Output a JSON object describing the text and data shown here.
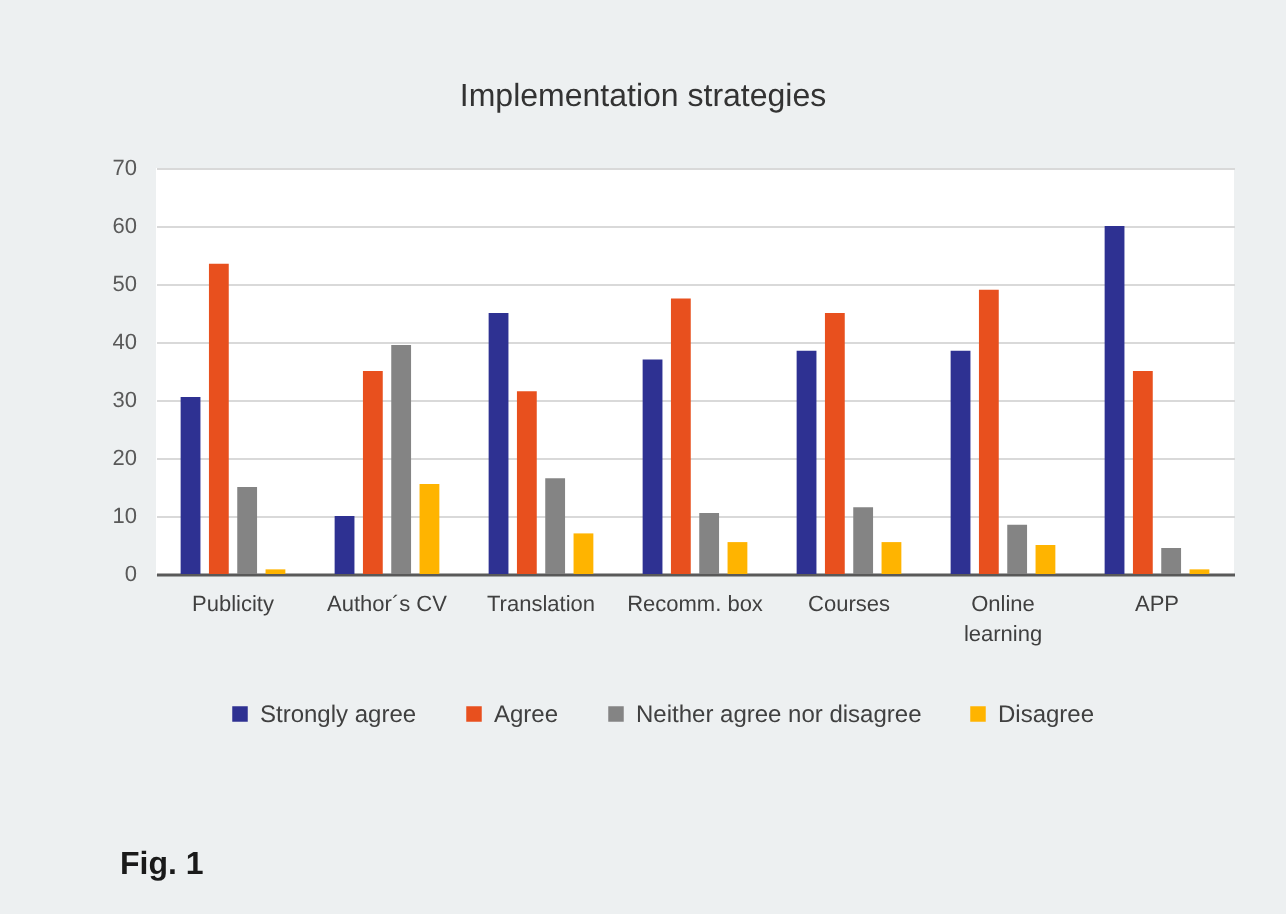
{
  "chart_data": {
    "type": "bar",
    "title": "Implementation strategies",
    "categories": [
      "Publicity",
      "Author´s CV",
      "Translation",
      "Recomm. box",
      "Courses",
      "Online learning",
      "APP"
    ],
    "series": [
      {
        "name": "Strongly agree",
        "color": "#2e3192",
        "values": [
          30.5,
          10,
          45,
          37,
          38.5,
          38.5,
          60
        ]
      },
      {
        "name": "Agree",
        "color": "#e8501e",
        "values": [
          53.5,
          35,
          31.5,
          47.5,
          45,
          49,
          35
        ]
      },
      {
        "name": "Neither agree nor disagree",
        "color": "#848484",
        "values": [
          15,
          39.5,
          16.5,
          10.5,
          11.5,
          8.5,
          4.5
        ]
      },
      {
        "name": "Disagree",
        "color": "#ffb400",
        "values": [
          0.8,
          15.5,
          7,
          5.5,
          5.5,
          5,
          0.8
        ]
      }
    ],
    "ylim": [
      0,
      70
    ],
    "yticks": [
      0,
      10,
      20,
      30,
      40,
      50,
      60,
      70
    ],
    "grid": "y",
    "legend": "bottom",
    "annotations": [
      "Fig. 1"
    ]
  }
}
